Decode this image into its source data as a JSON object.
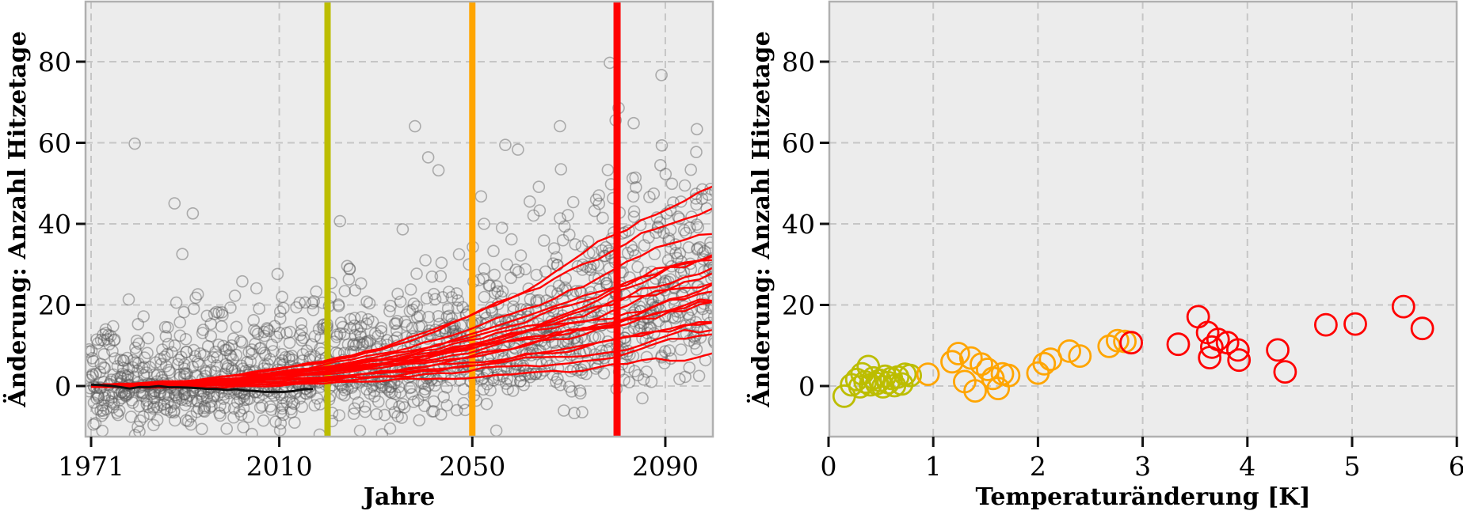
{
  "figure": {
    "background": "#ffffff",
    "plot_bg": "#ececec",
    "grid_color": "#c6c6c6",
    "spine_color": "#b0b0b0",
    "tick_color": "#111111"
  },
  "chart_data": [
    {
      "type": "scatter",
      "panel": "left",
      "title": "",
      "xlabel": "Jahre",
      "ylabel": "Änderung: Anzahl Hitzetage",
      "x_ticks": [
        1971,
        2010,
        2050,
        2090
      ],
      "y_ticks": [
        0,
        20,
        40,
        60,
        80
      ],
      "x_range": [
        1969.8,
        2099.8
      ],
      "y_range": [
        -12.5,
        94.8
      ],
      "grid": true,
      "scatter_color": "#5a5a5a",
      "scatter_opacity": 0.45,
      "marker_lines": [
        {
          "x": 2020,
          "color": "#bcbd00"
        },
        {
          "x": 2050,
          "color": "#ffa500"
        },
        {
          "x": 2080,
          "color": "#ff0000"
        }
      ],
      "historical_line": {
        "color": "#111111",
        "year_start": 1971,
        "year_end": 2017,
        "mean": 0
      },
      "ensemble_lines": {
        "color": "#ff0000",
        "years": [
          1971,
          1981,
          1991,
          2001,
          2011,
          2021,
          2031,
          2041,
          2051,
          2061,
          2071,
          2081,
          2091,
          2100
        ],
        "shape_fraction": [
          0,
          0.01,
          0.02,
          0.05,
          0.09,
          0.14,
          0.2,
          0.28,
          0.38,
          0.5,
          0.63,
          0.77,
          0.91,
          1.0
        ],
        "final_values_2100": [
          50,
          43,
          35,
          30,
          29,
          28,
          27,
          26,
          25,
          24,
          23,
          22,
          21,
          20,
          18,
          17,
          16,
          14,
          9
        ]
      },
      "scatter_spec": {
        "points_per_year": 12,
        "year_start": 1971,
        "year_end": 2100,
        "noise_sd_low": 5.0,
        "noise_sd_high_start": 8.5,
        "noise_sd_high_end": 12.0,
        "outlier_prob": 0.02,
        "outlier_extra_max": 40,
        "y_min": -12.3,
        "y_max": 93,
        "seed": 42
      }
    },
    {
      "type": "scatter",
      "panel": "right",
      "title": "",
      "xlabel": "Temperaturänderung [K]",
      "ylabel": "Änderung: Anzahl Hitzetage",
      "x_ticks": [
        0,
        1,
        2,
        3,
        4,
        5,
        6
      ],
      "y_ticks": [
        0,
        20,
        40,
        60,
        80
      ],
      "x_range": [
        0,
        6
      ],
      "y_range": [
        -12.5,
        94.8
      ],
      "grid": true,
      "series": [
        {
          "name": "olive",
          "color": "#bcbd00",
          "points": [
            [
              0.15,
              -2.5
            ],
            [
              0.22,
              0.3
            ],
            [
              0.27,
              1.6
            ],
            [
              0.3,
              -0.2
            ],
            [
              0.32,
              3.0
            ],
            [
              0.35,
              1.0
            ],
            [
              0.38,
              4.8
            ],
            [
              0.4,
              0.3
            ],
            [
              0.43,
              2.0
            ],
            [
              0.46,
              0.6
            ],
            [
              0.49,
              1.4
            ],
            [
              0.52,
              -0.2
            ],
            [
              0.54,
              2.4
            ],
            [
              0.57,
              0.8
            ],
            [
              0.6,
              1.9
            ],
            [
              0.63,
              0.1
            ],
            [
              0.66,
              2.2
            ],
            [
              0.7,
              0.5
            ],
            [
              0.73,
              2.9
            ],
            [
              0.78,
              2.6
            ]
          ]
        },
        {
          "name": "orange",
          "color": "#ffa500",
          "points": [
            [
              0.95,
              2.9
            ],
            [
              1.18,
              6.0
            ],
            [
              1.24,
              8.0
            ],
            [
              1.3,
              1.1
            ],
            [
              1.36,
              6.9
            ],
            [
              1.4,
              -1.2
            ],
            [
              1.46,
              5.4
            ],
            [
              1.52,
              4.1
            ],
            [
              1.57,
              1.9
            ],
            [
              1.62,
              -0.6
            ],
            [
              1.66,
              3.0
            ],
            [
              1.72,
              2.6
            ],
            [
              2.0,
              3.2
            ],
            [
              2.06,
              5.5
            ],
            [
              2.12,
              6.6
            ],
            [
              2.3,
              8.6
            ],
            [
              2.4,
              7.4
            ],
            [
              2.68,
              9.8
            ],
            [
              2.76,
              11.2
            ],
            [
              2.83,
              11.0
            ]
          ]
        },
        {
          "name": "red",
          "color": "#ff0000",
          "points": [
            [
              2.89,
              10.7
            ],
            [
              3.34,
              10.3
            ],
            [
              3.53,
              17.1
            ],
            [
              3.62,
              13.2
            ],
            [
              3.66,
              9.6
            ],
            [
              3.64,
              7.0
            ],
            [
              3.72,
              11.5
            ],
            [
              3.81,
              10.7
            ],
            [
              3.91,
              8.9
            ],
            [
              3.92,
              6.4
            ],
            [
              4.29,
              8.9
            ],
            [
              4.36,
              3.5
            ],
            [
              4.75,
              15.1
            ],
            [
              5.03,
              15.3
            ],
            [
              5.49,
              19.6
            ],
            [
              5.67,
              14.2
            ]
          ]
        }
      ]
    }
  ]
}
